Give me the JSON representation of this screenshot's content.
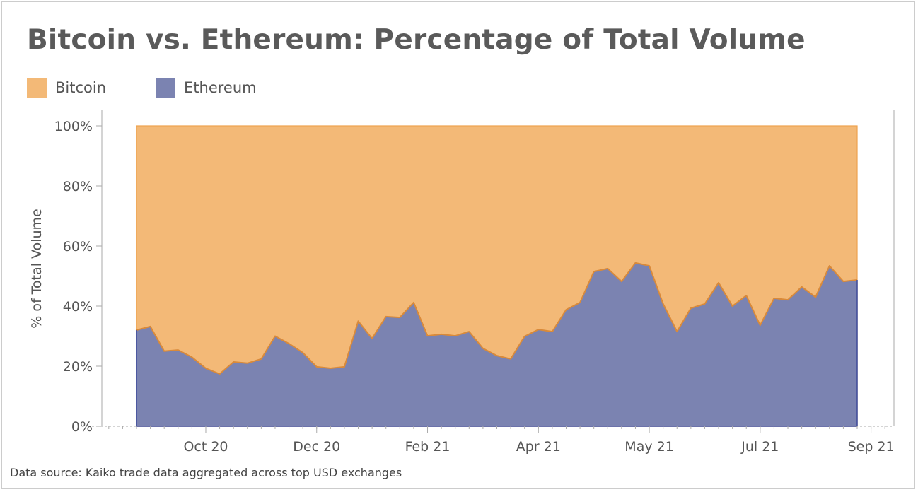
{
  "title": "Bitcoin vs. Ethereum: Percentage of Total Volume",
  "source": "Data source: Kaiko trade data aggregated across top USD exchanges",
  "colors": {
    "bitcoin": "#f3b977",
    "ethereum": "#7b83b1",
    "line": "#d98a3a",
    "axis_ethereum": "#3d4a9a"
  },
  "legend": [
    {
      "label": "Bitcoin",
      "color": "#f3b977"
    },
    {
      "label": "Ethereum",
      "color": "#7b83b1"
    }
  ],
  "chart_data": {
    "type": "area",
    "stacked": "percent",
    "title": "Bitcoin vs. Ethereum: Percentage of Total Volume",
    "ylabel": "% of Total Volume",
    "xlabel": "",
    "ylim": [
      0,
      100
    ],
    "yticks": [
      "0%",
      "20%",
      "40%",
      "60%",
      "80%",
      "100%"
    ],
    "xticks": [
      "Oct 20",
      "Dec 20",
      "Feb 21",
      "Apr 21",
      "May 21",
      "Jul 21",
      "Sep 21"
    ],
    "legend": "top-left",
    "grid": false,
    "x": [
      "2020-08-27",
      "2020-09-03",
      "2020-09-10",
      "2020-09-17",
      "2020-09-24",
      "2020-10-01",
      "2020-10-08",
      "2020-10-15",
      "2020-10-22",
      "2020-10-29",
      "2020-11-05",
      "2020-11-12",
      "2020-11-19",
      "2020-11-26",
      "2020-12-03",
      "2020-12-10",
      "2020-12-17",
      "2020-12-24",
      "2020-12-31",
      "2021-01-07",
      "2021-01-14",
      "2021-01-21",
      "2021-01-28",
      "2021-02-04",
      "2021-02-11",
      "2021-02-18",
      "2021-02-25",
      "2021-03-04",
      "2021-03-11",
      "2021-03-18",
      "2021-03-25",
      "2021-04-01",
      "2021-04-08",
      "2021-04-15",
      "2021-04-22",
      "2021-04-29",
      "2021-05-06",
      "2021-05-13",
      "2021-05-20",
      "2021-05-27",
      "2021-06-03",
      "2021-06-10",
      "2021-06-17",
      "2021-06-24",
      "2021-07-01",
      "2021-07-08",
      "2021-07-15",
      "2021-07-22",
      "2021-07-29",
      "2021-08-05",
      "2021-08-12",
      "2021-08-19",
      "2021-08-26"
    ],
    "series": [
      {
        "name": "Ethereum",
        "values": [
          32,
          33.2,
          25,
          25.4,
          23,
          19.3,
          17.4,
          21.4,
          21,
          22.4,
          30,
          27.5,
          24.5,
          19.8,
          19.3,
          19.8,
          35,
          29.2,
          36.5,
          36.2,
          41.2,
          30.1,
          30.6,
          30.1,
          31.5,
          25.9,
          23.5,
          22.4,
          29.9,
          32.2,
          31.5,
          38.8,
          41.2,
          51.5,
          52.5,
          48.2,
          54.4,
          53.4,
          40.7,
          31.5,
          39.3,
          40.7,
          47.8,
          40,
          43.5,
          33.6,
          42.6,
          42.1,
          46.4,
          43,
          53.4,
          48.2,
          48.7
        ]
      },
      {
        "name": "Bitcoin",
        "values": "remainder to 100%"
      }
    ]
  }
}
